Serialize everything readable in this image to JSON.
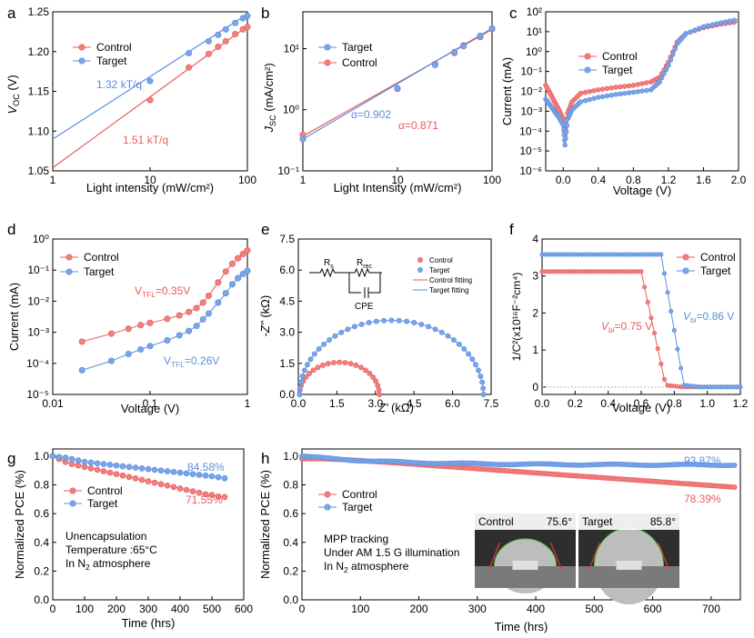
{
  "colors": {
    "control": "#ec5a5a",
    "target": "#5b8fdc",
    "control_fill": "#f08080",
    "target_fill": "#7aa5e8"
  },
  "panels": [
    {
      "id": "a",
      "label": "a"
    },
    {
      "id": "b",
      "label": "b"
    },
    {
      "id": "c",
      "label": "c"
    },
    {
      "id": "d",
      "label": "d"
    },
    {
      "id": "e",
      "label": "e"
    },
    {
      "id": "f",
      "label": "f"
    },
    {
      "id": "g",
      "label": "g"
    },
    {
      "id": "h",
      "label": "h"
    }
  ],
  "chart_data": [
    {
      "id": "a",
      "type": "scatter",
      "xlabel": "Light intensity (mW/cm²)",
      "ylabel_main": "V",
      "ylabel_sub": "OC",
      "ylabel_unit": " (V)",
      "xscale": "log",
      "xlim": [
        1,
        100
      ],
      "ylim": [
        1.05,
        1.25
      ],
      "xticks": [
        1,
        10,
        100
      ],
      "xtick_labels": [
        "1",
        "10",
        "100"
      ],
      "yticks": [
        1.05,
        1.1,
        1.15,
        1.2,
        1.25
      ],
      "ytick_labels": [
        "1.05",
        "1.10",
        "1.15",
        "1.20",
        "1.25"
      ],
      "legend": [
        "Control",
        "Target"
      ],
      "series": [
        {
          "name": "Control",
          "x": [
            10,
            25,
            40,
            50,
            60,
            75,
            90,
            100
          ],
          "y": [
            1.139,
            1.18,
            1.197,
            1.206,
            1.213,
            1.222,
            1.228,
            1.231
          ],
          "fit": [
            [
              1,
              1.054
            ],
            [
              100,
              1.232
            ]
          ]
        },
        {
          "name": "Target",
          "x": [
            10,
            25,
            40,
            50,
            60,
            75,
            90,
            100
          ],
          "y": [
            1.163,
            1.198,
            1.213,
            1.221,
            1.228,
            1.236,
            1.242,
            1.245
          ],
          "fit": [
            [
              1,
              1.09
            ],
            [
              100,
              1.247
            ]
          ]
        }
      ],
      "annotations": [
        {
          "text": "1.32 kT/q",
          "series": "Target"
        },
        {
          "text": "1.51 kT/q",
          "series": "Control"
        }
      ]
    },
    {
      "id": "b",
      "type": "scatter",
      "xlabel": "Light Intensity (mW/cm²)",
      "ylabel_main": "J",
      "ylabel_sub": "SC",
      "ylabel_unit": " (mA/cm²)",
      "xscale": "log",
      "yscale": "log",
      "xlim": [
        1,
        100
      ],
      "ylim": [
        0.1,
        40
      ],
      "xticks": [
        1,
        10,
        100
      ],
      "xtick_labels": [
        "1",
        "10",
        "100"
      ],
      "yticks": [
        0.1,
        1,
        10
      ],
      "ytick_labels": [
        "10⁻¹",
        "10⁰",
        "10¹"
      ],
      "legend": [
        "Control",
        "Target"
      ],
      "series": [
        {
          "name": "Control",
          "x": [
            1,
            10,
            25,
            40,
            50,
            75,
            100
          ],
          "y": [
            0.39,
            2.2,
            5.6,
            8.5,
            11.3,
            15.5,
            21.0
          ],
          "fit": [
            [
              1,
              0.37
            ],
            [
              100,
              20.5
            ]
          ]
        },
        {
          "name": "Target",
          "x": [
            1,
            10,
            25,
            40,
            50,
            75,
            100
          ],
          "y": [
            0.33,
            2.25,
            5.4,
            8.8,
            11.0,
            16.2,
            21.5
          ],
          "fit": [
            [
              1,
              0.33
            ],
            [
              100,
              21.5
            ]
          ]
        }
      ],
      "annotations": [
        {
          "text": "α=0.902",
          "series": "Target"
        },
        {
          "text": "α=0.871",
          "series": "Control"
        }
      ]
    },
    {
      "id": "c",
      "type": "line",
      "xlabel": "Voltage (V)",
      "ylabel": "Current (mA)",
      "yscale": "log",
      "xlim": [
        -0.2,
        2.0
      ],
      "ylim": [
        1e-06,
        100
      ],
      "xticks": [
        0.0,
        0.4,
        0.8,
        1.2,
        1.6,
        2.0
      ],
      "xtick_labels": [
        "0.0",
        "0.4",
        "0.8",
        "1.2",
        "1.6",
        "2.0"
      ],
      "yticks": [
        1e-06,
        1e-05,
        0.0001,
        0.001,
        0.01,
        0.1,
        1,
        10,
        100
      ],
      "ytick_labels": [
        "10⁻⁶",
        "10⁻⁵",
        "10⁻⁴",
        "10⁻³",
        "10⁻²",
        "10⁻¹",
        "10⁰",
        "10¹",
        "10²"
      ],
      "legend": [
        "Control",
        "Target"
      ],
      "series": [
        {
          "name": "Control",
          "x": [
            -0.2,
            -0.15,
            -0.1,
            -0.05,
            0.0,
            0.02,
            0.05,
            0.1,
            0.2,
            0.4,
            0.6,
            0.8,
            1.0,
            1.1,
            1.2,
            1.3,
            1.4,
            1.6,
            1.8,
            2.0
          ],
          "y": [
            0.02,
            0.008,
            0.003,
            0.0012,
            0.0004,
            6e-05,
            0.0008,
            0.003,
            0.008,
            0.012,
            0.016,
            0.02,
            0.03,
            0.05,
            0.3,
            3,
            8,
            16,
            24,
            32
          ]
        },
        {
          "name": "Target",
          "x": [
            -0.2,
            -0.15,
            -0.1,
            -0.05,
            0.0,
            0.02,
            0.05,
            0.1,
            0.2,
            0.4,
            0.6,
            0.8,
            1.0,
            1.1,
            1.2,
            1.3,
            1.4,
            1.6,
            1.8,
            2.0
          ],
          "y": [
            0.004,
            0.002,
            0.001,
            0.0005,
            0.0002,
            2e-05,
            0.0004,
            0.0012,
            0.003,
            0.005,
            0.007,
            0.009,
            0.012,
            0.03,
            0.2,
            2.5,
            8,
            18,
            28,
            42
          ]
        }
      ]
    },
    {
      "id": "d",
      "type": "scatter",
      "xlabel": "Voltage (V)",
      "ylabel": "Current (mA)",
      "xscale": "log",
      "yscale": "log",
      "xlim": [
        0.01,
        1
      ],
      "ylim": [
        1e-05,
        1
      ],
      "xticks": [
        0.01,
        0.1,
        1
      ],
      "xtick_labels": [
        "0.01",
        "0.1",
        "1"
      ],
      "yticks": [
        1e-05,
        0.0001,
        0.001,
        0.01,
        0.1,
        1
      ],
      "ytick_labels": [
        "10⁻⁵",
        "10⁻⁴",
        "10⁻³",
        "10⁻²",
        "10⁻¹",
        "10⁰"
      ],
      "legend": [
        "Control",
        "Target"
      ],
      "series": [
        {
          "name": "Control",
          "x": [
            0.02,
            0.04,
            0.06,
            0.08,
            0.1,
            0.15,
            0.2,
            0.25,
            0.3,
            0.35,
            0.4,
            0.5,
            0.6,
            0.7,
            0.8,
            0.9,
            1.0
          ],
          "y": [
            0.0005,
            0.0009,
            0.0013,
            0.0017,
            0.002,
            0.0027,
            0.0035,
            0.0045,
            0.006,
            0.009,
            0.015,
            0.04,
            0.09,
            0.16,
            0.24,
            0.33,
            0.43
          ]
        },
        {
          "name": "Target",
          "x": [
            0.02,
            0.04,
            0.06,
            0.08,
            0.1,
            0.15,
            0.2,
            0.25,
            0.3,
            0.35,
            0.4,
            0.5,
            0.6,
            0.7,
            0.8,
            0.9,
            1.0
          ],
          "y": [
            6e-05,
            0.00012,
            0.0002,
            0.00028,
            0.00036,
            0.00055,
            0.0008,
            0.0011,
            0.0016,
            0.0026,
            0.004,
            0.009,
            0.018,
            0.035,
            0.055,
            0.075,
            0.095
          ]
        }
      ],
      "annotations": [
        {
          "text": "V",
          "sub": "TFL",
          "tail": "=0.35V",
          "series": "Control"
        },
        {
          "text": "V",
          "sub": "TFL",
          "tail": "=0.26V",
          "series": "Target"
        }
      ]
    },
    {
      "id": "e",
      "type": "scatter",
      "xlabel_main": "Z'",
      "xlabel_unit": " (kΩ)",
      "ylabel_main": "-Z''",
      "ylabel_unit": " (kΩ)",
      "xlim": [
        0,
        7.5
      ],
      "ylim": [
        0,
        7.5
      ],
      "xticks": [
        0.0,
        1.5,
        3.0,
        4.5,
        6.0,
        7.5
      ],
      "xtick_labels": [
        "0.0",
        "1.5",
        "3.0",
        "4.5",
        "6.0",
        "7.5"
      ],
      "yticks": [
        0.0,
        1.5,
        3.0,
        4.5,
        6.0,
        7.5
      ],
      "ytick_labels": [
        "0.0",
        "1.5",
        "3.0",
        "4.5",
        "6.0",
        "7.5"
      ],
      "legend": [
        "Control",
        "Target",
        "Control fitting",
        "Target fitting"
      ],
      "series": [
        {
          "name": "Control",
          "semicircle": [
            0.05,
            3.15
          ]
        },
        {
          "name": "Target",
          "semicircle": [
            0.05,
            7.2
          ]
        }
      ],
      "circuit": {
        "rs": "R",
        "rs_sub": "s",
        "rrec": "R",
        "rrec_sub": "rec",
        "cpe": "CPE"
      }
    },
    {
      "id": "f",
      "type": "scatter",
      "xlabel": "Voltage (V)",
      "ylabel": "1/C²(x10¹⁶F⁻²cm⁴)",
      "xlim": [
        0.0,
        1.2
      ],
      "ylim": [
        -0.2,
        4
      ],
      "xticks": [
        0.0,
        0.2,
        0.4,
        0.6,
        0.8,
        1.0,
        1.2
      ],
      "xtick_labels": [
        "0.0",
        "0.2",
        "0.4",
        "0.6",
        "0.8",
        "1.0",
        "1.2"
      ],
      "yticks": [
        0,
        1,
        2,
        3,
        4
      ],
      "ytick_labels": [
        "0",
        "1",
        "2",
        "3",
        "4"
      ],
      "legend": [
        "Control",
        "Target"
      ],
      "series": [
        {
          "name": "Control",
          "plateau": 3.12,
          "fall_start": 0.6,
          "fall_end": 0.75
        },
        {
          "name": "Target",
          "plateau": 3.58,
          "fall_start": 0.72,
          "fall_end": 0.86
        }
      ],
      "annotations": [
        {
          "text": "V",
          "sub": "bi",
          "tail": "=0.75 V",
          "series": "Control"
        },
        {
          "text": "V",
          "sub": "bi",
          "tail": "=0.86 V",
          "series": "Target"
        }
      ]
    },
    {
      "id": "g",
      "type": "line",
      "xlabel": "Time (hrs)",
      "ylabel": "Normalized PCE (%)",
      "xlim": [
        0,
        600
      ],
      "ylim": [
        0,
        1.05
      ],
      "xticks": [
        0,
        100,
        200,
        300,
        400,
        500,
        600
      ],
      "xtick_labels": [
        "0",
        "100",
        "200",
        "300",
        "400",
        "500",
        "600"
      ],
      "yticks": [
        0.0,
        0.2,
        0.4,
        0.6,
        0.8,
        1.0
      ],
      "ytick_labels": [
        "0.0",
        "0.2",
        "0.4",
        "0.6",
        "0.8",
        "1.0"
      ],
      "legend": [
        "Control",
        "Target"
      ],
      "series": [
        {
          "name": "Control",
          "x": [
            0,
            20,
            40,
            60,
            80,
            100,
            120,
            140,
            160,
            180,
            200,
            220,
            240,
            260,
            280,
            300,
            320,
            340,
            360,
            380,
            400,
            420,
            440,
            460,
            480,
            500,
            520,
            540
          ],
          "y": [
            1.0,
            0.98,
            0.96,
            0.945,
            0.935,
            0.925,
            0.915,
            0.905,
            0.895,
            0.885,
            0.875,
            0.865,
            0.855,
            0.845,
            0.835,
            0.825,
            0.815,
            0.805,
            0.795,
            0.785,
            0.775,
            0.765,
            0.755,
            0.745,
            0.735,
            0.73,
            0.72,
            0.7155
          ]
        },
        {
          "name": "Target",
          "x": [
            0,
            20,
            40,
            60,
            80,
            100,
            120,
            140,
            160,
            180,
            200,
            220,
            240,
            260,
            280,
            300,
            320,
            340,
            360,
            380,
            400,
            420,
            440,
            460,
            480,
            500,
            520,
            540
          ],
          "y": [
            1.0,
            0.995,
            0.99,
            0.98,
            0.97,
            0.96,
            0.955,
            0.95,
            0.945,
            0.94,
            0.935,
            0.93,
            0.925,
            0.92,
            0.915,
            0.91,
            0.905,
            0.9,
            0.895,
            0.89,
            0.885,
            0.88,
            0.875,
            0.87,
            0.865,
            0.86,
            0.853,
            0.8458
          ]
        }
      ],
      "annotations": [
        {
          "text": "84.58%",
          "series": "Target"
        },
        {
          "text": "71.55%",
          "series": "Control"
        }
      ],
      "notes": [
        {
          "text": "Unencapsulation"
        },
        {
          "text": "Temperature :65°C"
        },
        {
          "text": "In N",
          "sub": "2",
          "tail": "  atmosphere"
        }
      ]
    },
    {
      "id": "h",
      "type": "line",
      "xlabel": "Time (hrs)",
      "ylabel": "Normalized PCE (%)",
      "xlim": [
        0,
        750
      ],
      "ylim": [
        0,
        1.05
      ],
      "xticks": [
        0,
        100,
        200,
        300,
        400,
        500,
        600,
        700
      ],
      "xtick_labels": [
        "0",
        "100",
        "200",
        "300",
        "400",
        "500",
        "600",
        "700"
      ],
      "yticks": [
        0.0,
        0.2,
        0.4,
        0.6,
        0.8,
        1.0
      ],
      "ytick_labels": [
        "0.0",
        "0.2",
        "0.4",
        "0.6",
        "0.8",
        "1.0"
      ],
      "legend": [
        "Control",
        "Target"
      ],
      "series": [
        {
          "name": "Control",
          "end": 0.7839
        },
        {
          "name": "Target",
          "end": 0.9387
        }
      ],
      "annotations": [
        {
          "text": "93.87%",
          "series": "Target"
        },
        {
          "text": "78.39%",
          "series": "Control"
        }
      ],
      "notes": [
        {
          "text": "MPP tracking"
        },
        {
          "text": "Under AM 1.5 G illumination"
        },
        {
          "text": "In N",
          "sub": "2",
          "tail": "  atmosphere"
        }
      ],
      "inset": [
        {
          "label": "Control",
          "angle": "75.6°"
        },
        {
          "label": "Target",
          "angle": "85.8°"
        }
      ]
    }
  ]
}
